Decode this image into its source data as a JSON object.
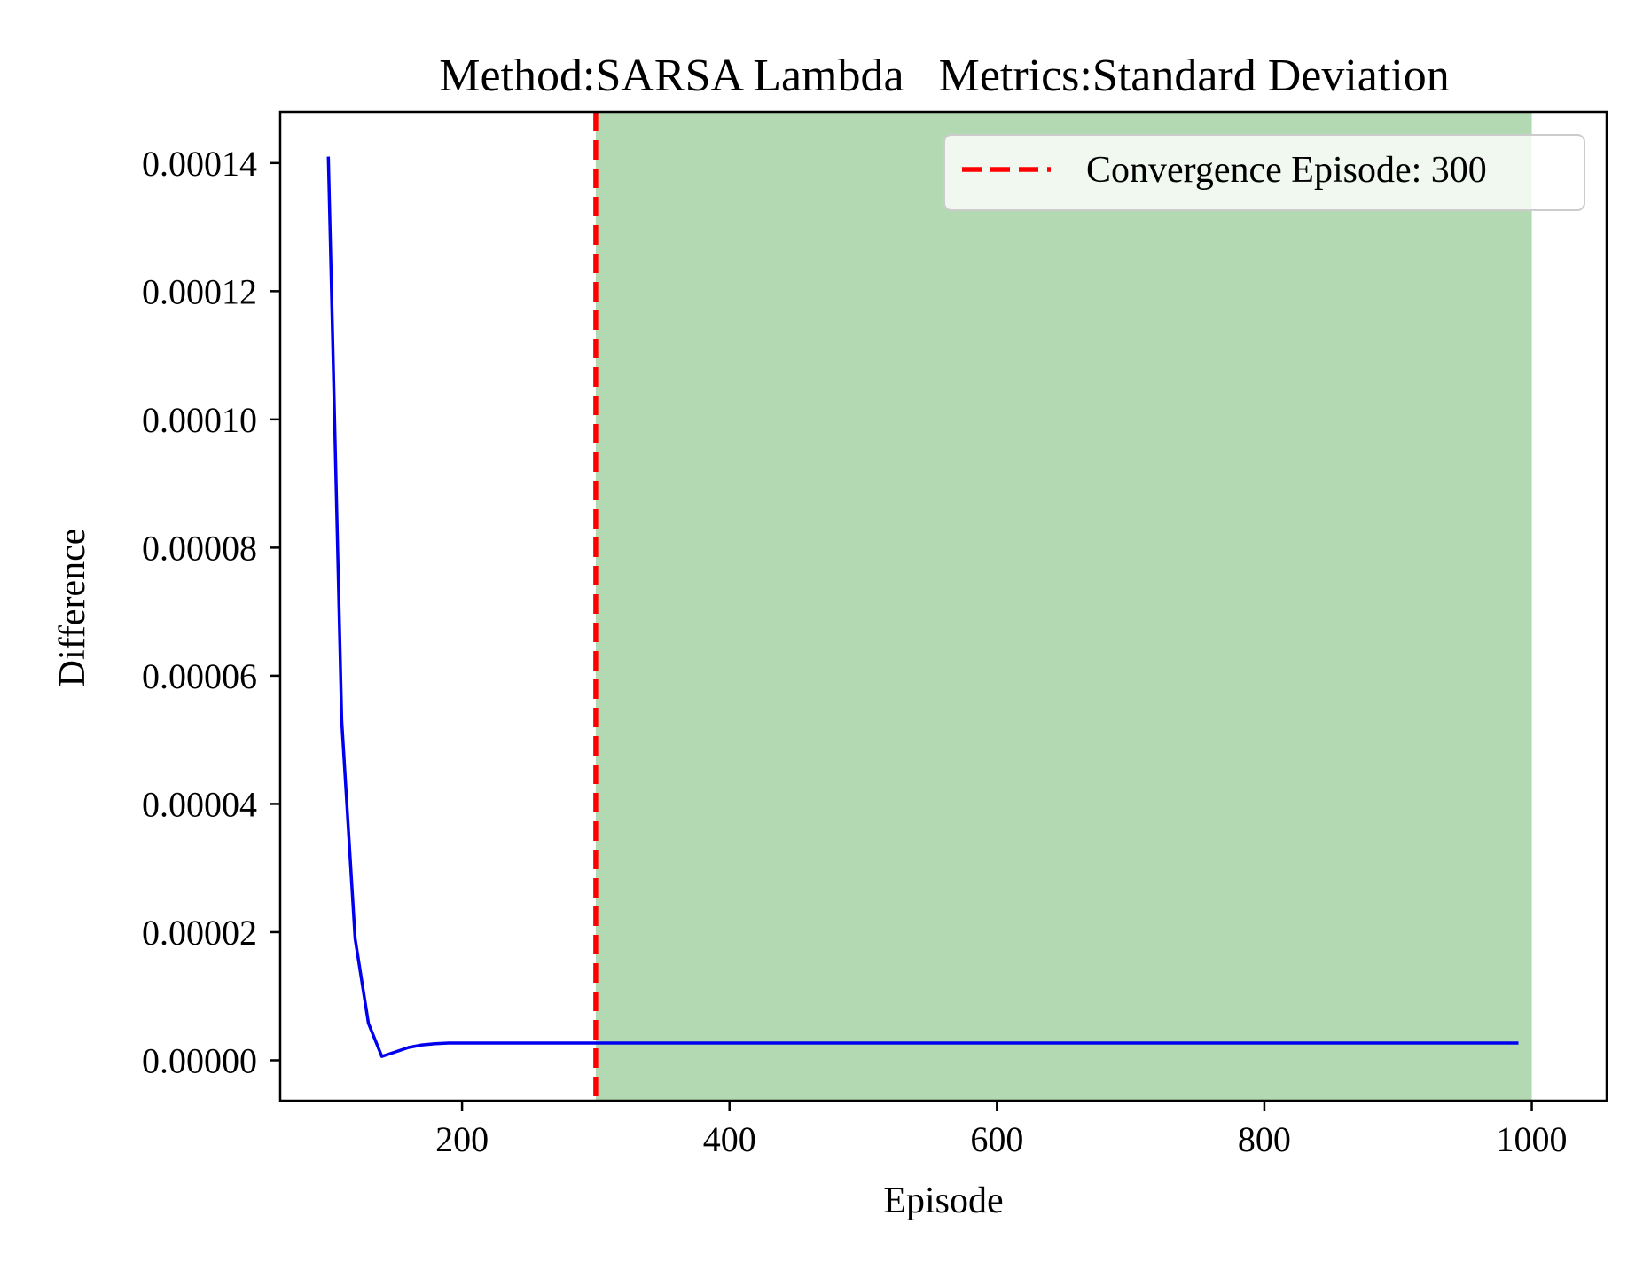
{
  "chart_data": {
    "type": "line",
    "title": "Method:SARSA Lambda   Metrics:Standard Deviation",
    "xlabel": "Episode",
    "ylabel": "Difference",
    "xlim": [
      64,
      1056
    ],
    "ylim": [
      -6.3e-06,
      0.000148
    ],
    "xticks": [
      200,
      400,
      600,
      800,
      1000
    ],
    "xtick_labels": [
      "200",
      "400",
      "600",
      "800",
      "1000"
    ],
    "yticks": [
      0.0,
      2e-05,
      4e-05,
      6e-05,
      8e-05,
      0.0001,
      0.00012,
      0.00014
    ],
    "ytick_labels": [
      "0.00000",
      "0.00002",
      "0.00004",
      "0.00006",
      "0.00008",
      "0.00010",
      "0.00012",
      "0.00014"
    ],
    "grid": false,
    "legend_position": "top-right",
    "series": [
      {
        "name": "",
        "color": "#0000ee",
        "x": [
          100,
          110,
          120,
          130,
          140,
          150,
          160,
          170,
          180,
          190,
          200,
          250,
          300,
          400,
          500,
          600,
          700,
          800,
          900,
          990
        ],
        "y": [
          0.000141,
          5.3e-05,
          1.9e-05,
          5.8e-06,
          6e-07,
          1.3e-06,
          2e-06,
          2.4e-06,
          2.6e-06,
          2.7e-06,
          2.7e-06,
          2.7e-06,
          2.7e-06,
          2.7e-06,
          2.7e-06,
          2.7e-06,
          2.7e-06,
          2.7e-06,
          2.7e-06,
          2.7e-06
        ]
      }
    ],
    "vline": {
      "x": 300,
      "label": "Convergence Episode: 300",
      "color": "#ff0000",
      "style": "dashed"
    },
    "shaded_region": {
      "x_start": 300,
      "x_end": 1000,
      "color": "#b3d9b3"
    }
  }
}
